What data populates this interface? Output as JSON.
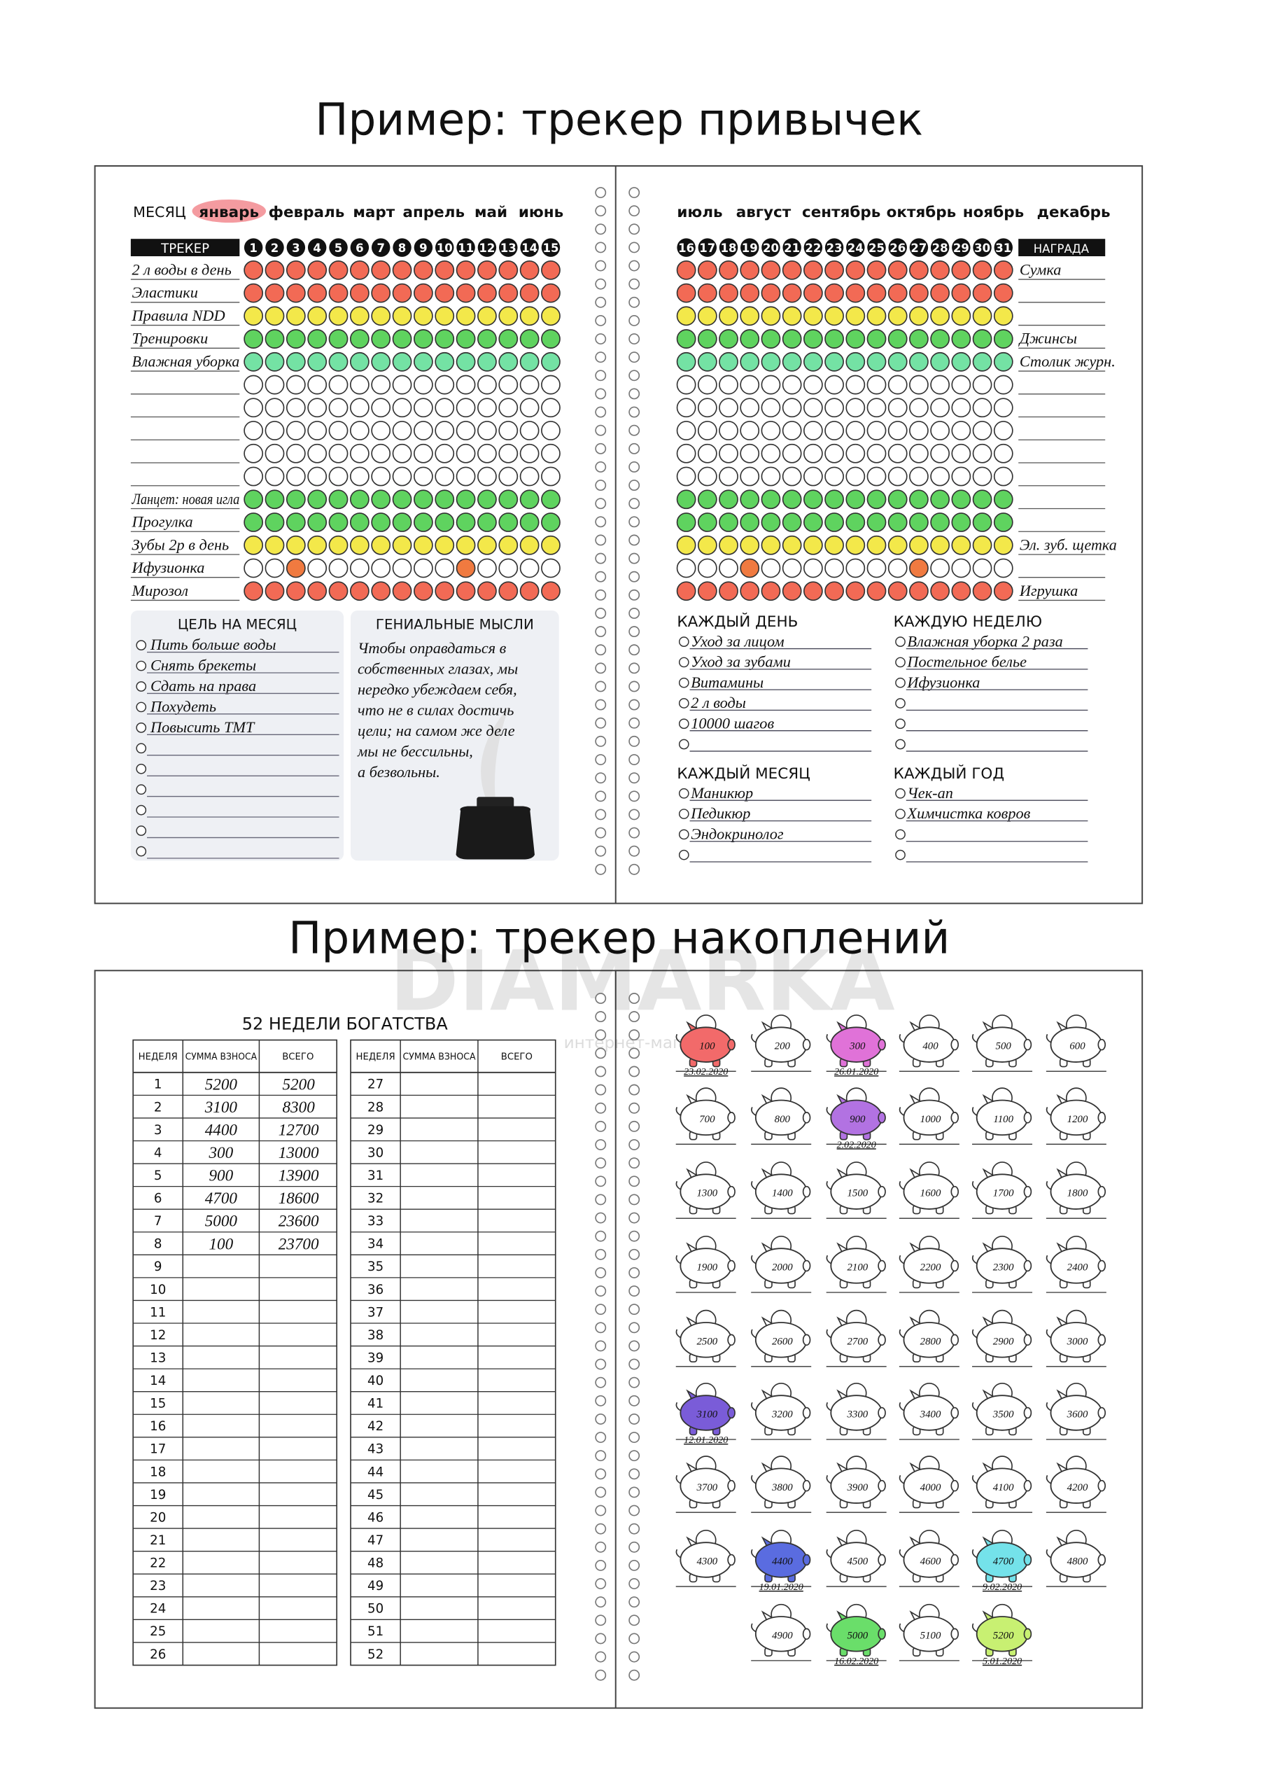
{
  "titles": [
    "Пример: трекер привычек",
    "Пример: трекер накоплений"
  ],
  "watermark": {
    "brand": "DIAMARKA",
    "tagline": "интернет-магазин"
  },
  "habit_tracker": {
    "month_label": "МЕСЯЦ",
    "months": [
      "январь",
      "февраль",
      "март",
      "апрель",
      "май",
      "июнь",
      "июль",
      "август",
      "сентябрь",
      "октябрь",
      "ноябрь",
      "декабрь"
    ],
    "selected_month_index": 0,
    "tracker_label": "ТРЕКЕР",
    "reward_label": "НАГРАДА",
    "days": [
      1,
      2,
      3,
      4,
      5,
      6,
      7,
      8,
      9,
      10,
      11,
      12,
      13,
      14,
      15,
      16,
      17,
      18,
      19,
      20,
      21,
      22,
      23,
      24,
      25,
      26,
      27,
      28,
      29,
      30,
      31
    ],
    "habits": [
      {
        "name": "2 л воды в день",
        "reward": "Сумка",
        "color": "#f26a55"
      },
      {
        "name": "Эластики",
        "reward": null,
        "color": "#f26a55"
      },
      {
        "name": "Правила NDD",
        "reward": null,
        "color": "#f3e84a"
      },
      {
        "name": "Тренировки",
        "reward": "Джинсы",
        "color": "#5fd35f"
      },
      {
        "name": "Влажная уборка",
        "reward": "Столик журн.",
        "color": "#74e2a4"
      },
      {
        "name": null,
        "reward": null,
        "color": null
      },
      {
        "name": null,
        "reward": null,
        "color": null
      },
      {
        "name": null,
        "reward": null,
        "color": null
      },
      {
        "name": null,
        "reward": null,
        "color": null
      },
      {
        "name": null,
        "reward": null,
        "color": null
      },
      {
        "name": "Ланцет: новая игла",
        "reward": null,
        "color": "#5fd35f"
      },
      {
        "name": "Прогулка",
        "reward": null,
        "color": "#5fd35f"
      },
      {
        "name": "Зубы 2р в день",
        "reward": "Эл. зуб. щетка",
        "color": "#f3e84a"
      },
      {
        "name": "Ифузионка",
        "reward": null,
        "color": null,
        "mark_color": "#f07a40",
        "marked_days": [
          3,
          11,
          19,
          27
        ]
      },
      {
        "name": "Мирозол",
        "reward": "Игрушка",
        "color": "#f26a55"
      }
    ],
    "goals": {
      "title": "ЦЕЛЬ НА МЕСЯЦ",
      "items": [
        "Пить больше воды",
        "Снять брекеты",
        "Сдать на права",
        "Похудеть",
        "Повысить ТМТ",
        null,
        null,
        null,
        null,
        null,
        null
      ]
    },
    "thoughts": {
      "title": "ГЕНИАЛЬНЫЕ МЫСЛИ",
      "lines": [
        "Чтобы оправдаться в",
        "собственных глазах, мы",
        "нередко убеждаем себя,",
        "что не в силах достичь",
        "цели; на самом же деле",
        "мы не бессильны,",
        "а безвольны."
      ]
    },
    "routines": [
      {
        "title": "КАЖДЫЙ ДЕНЬ",
        "items": [
          "Уход за лицом",
          "Уход за зубами",
          "Витамины",
          "2 л воды",
          "10000 шагов",
          null
        ]
      },
      {
        "title": "КАЖДУЮ НЕДЕЛЮ",
        "items": [
          "Влажная уборка 2 раза",
          "Постельное белье",
          "Ифузионка",
          null,
          null,
          null
        ]
      },
      {
        "title": "КАЖДЫЙ МЕСЯЦ",
        "items": [
          "Маникюр",
          "Педикюр",
          "Эндокринолог",
          null
        ]
      },
      {
        "title": "КАЖДЫЙ ГОД",
        "items": [
          "Чек-ап",
          "Химчистка ковров",
          null,
          null
        ]
      }
    ]
  },
  "savings": {
    "title": "52 НЕДЕЛИ БОГАТСТВА",
    "headers": [
      "НЕДЕЛЯ",
      "СУММА ВЗНОСА",
      "ВСЕГО"
    ],
    "weeks": [
      1,
      2,
      3,
      4,
      5,
      6,
      7,
      8,
      9,
      10,
      11,
      12,
      13,
      14,
      15,
      16,
      17,
      18,
      19,
      20,
      21,
      22,
      23,
      24,
      25,
      26,
      27,
      28,
      29,
      30,
      31,
      32,
      33,
      34,
      35,
      36,
      37,
      38,
      39,
      40,
      41,
      42,
      43,
      44,
      45,
      46,
      47,
      48,
      49,
      50,
      51,
      52
    ],
    "contributions": [
      5200,
      3100,
      4400,
      300,
      900,
      4700,
      5000,
      100
    ],
    "totals": [
      5200,
      8300,
      12700,
      13000,
      13900,
      18600,
      23600,
      23700
    ],
    "piggies": [
      {
        "amount": 100,
        "color": "#f26a6a",
        "date": "23.02.2020"
      },
      {
        "amount": 200
      },
      {
        "amount": 300,
        "color": "#e072d8",
        "date": "26.01.2020"
      },
      {
        "amount": 400
      },
      {
        "amount": 500
      },
      {
        "amount": 600
      },
      {
        "amount": 700
      },
      {
        "amount": 800
      },
      {
        "amount": 900,
        "color": "#b272e2",
        "date": "2.02.2020"
      },
      {
        "amount": 1000
      },
      {
        "amount": 1100
      },
      {
        "amount": 1200
      },
      {
        "amount": 1300
      },
      {
        "amount": 1400
      },
      {
        "amount": 1500
      },
      {
        "amount": 1600
      },
      {
        "amount": 1700
      },
      {
        "amount": 1800
      },
      {
        "amount": 1900
      },
      {
        "amount": 2000
      },
      {
        "amount": 2100
      },
      {
        "amount": 2200
      },
      {
        "amount": 2300
      },
      {
        "amount": 2400
      },
      {
        "amount": 2500
      },
      {
        "amount": 2600
      },
      {
        "amount": 2700
      },
      {
        "amount": 2800
      },
      {
        "amount": 2900
      },
      {
        "amount": 3000
      },
      {
        "amount": 3100,
        "color": "#7a5cd8",
        "date": "12.01.2020"
      },
      {
        "amount": 3200
      },
      {
        "amount": 3300
      },
      {
        "amount": 3400
      },
      {
        "amount": 3500
      },
      {
        "amount": 3600
      },
      {
        "amount": 3700
      },
      {
        "amount": 3800
      },
      {
        "amount": 3900
      },
      {
        "amount": 4000
      },
      {
        "amount": 4100
      },
      {
        "amount": 4200
      },
      {
        "amount": 4300
      },
      {
        "amount": 4400,
        "color": "#5a6ce0",
        "date": "19.01.2020"
      },
      {
        "amount": 4500
      },
      {
        "amount": 4600
      },
      {
        "amount": 4700,
        "color": "#74e2ea",
        "date": "9.02.2020"
      },
      {
        "amount": 4800
      },
      {
        "amount": 4900
      },
      {
        "amount": 5000,
        "color": "#6ade6a",
        "date": "16.02.2020"
      },
      {
        "amount": 5100
      },
      {
        "amount": 5200,
        "color": "#c8f072",
        "date": "5.01.2020"
      }
    ]
  }
}
